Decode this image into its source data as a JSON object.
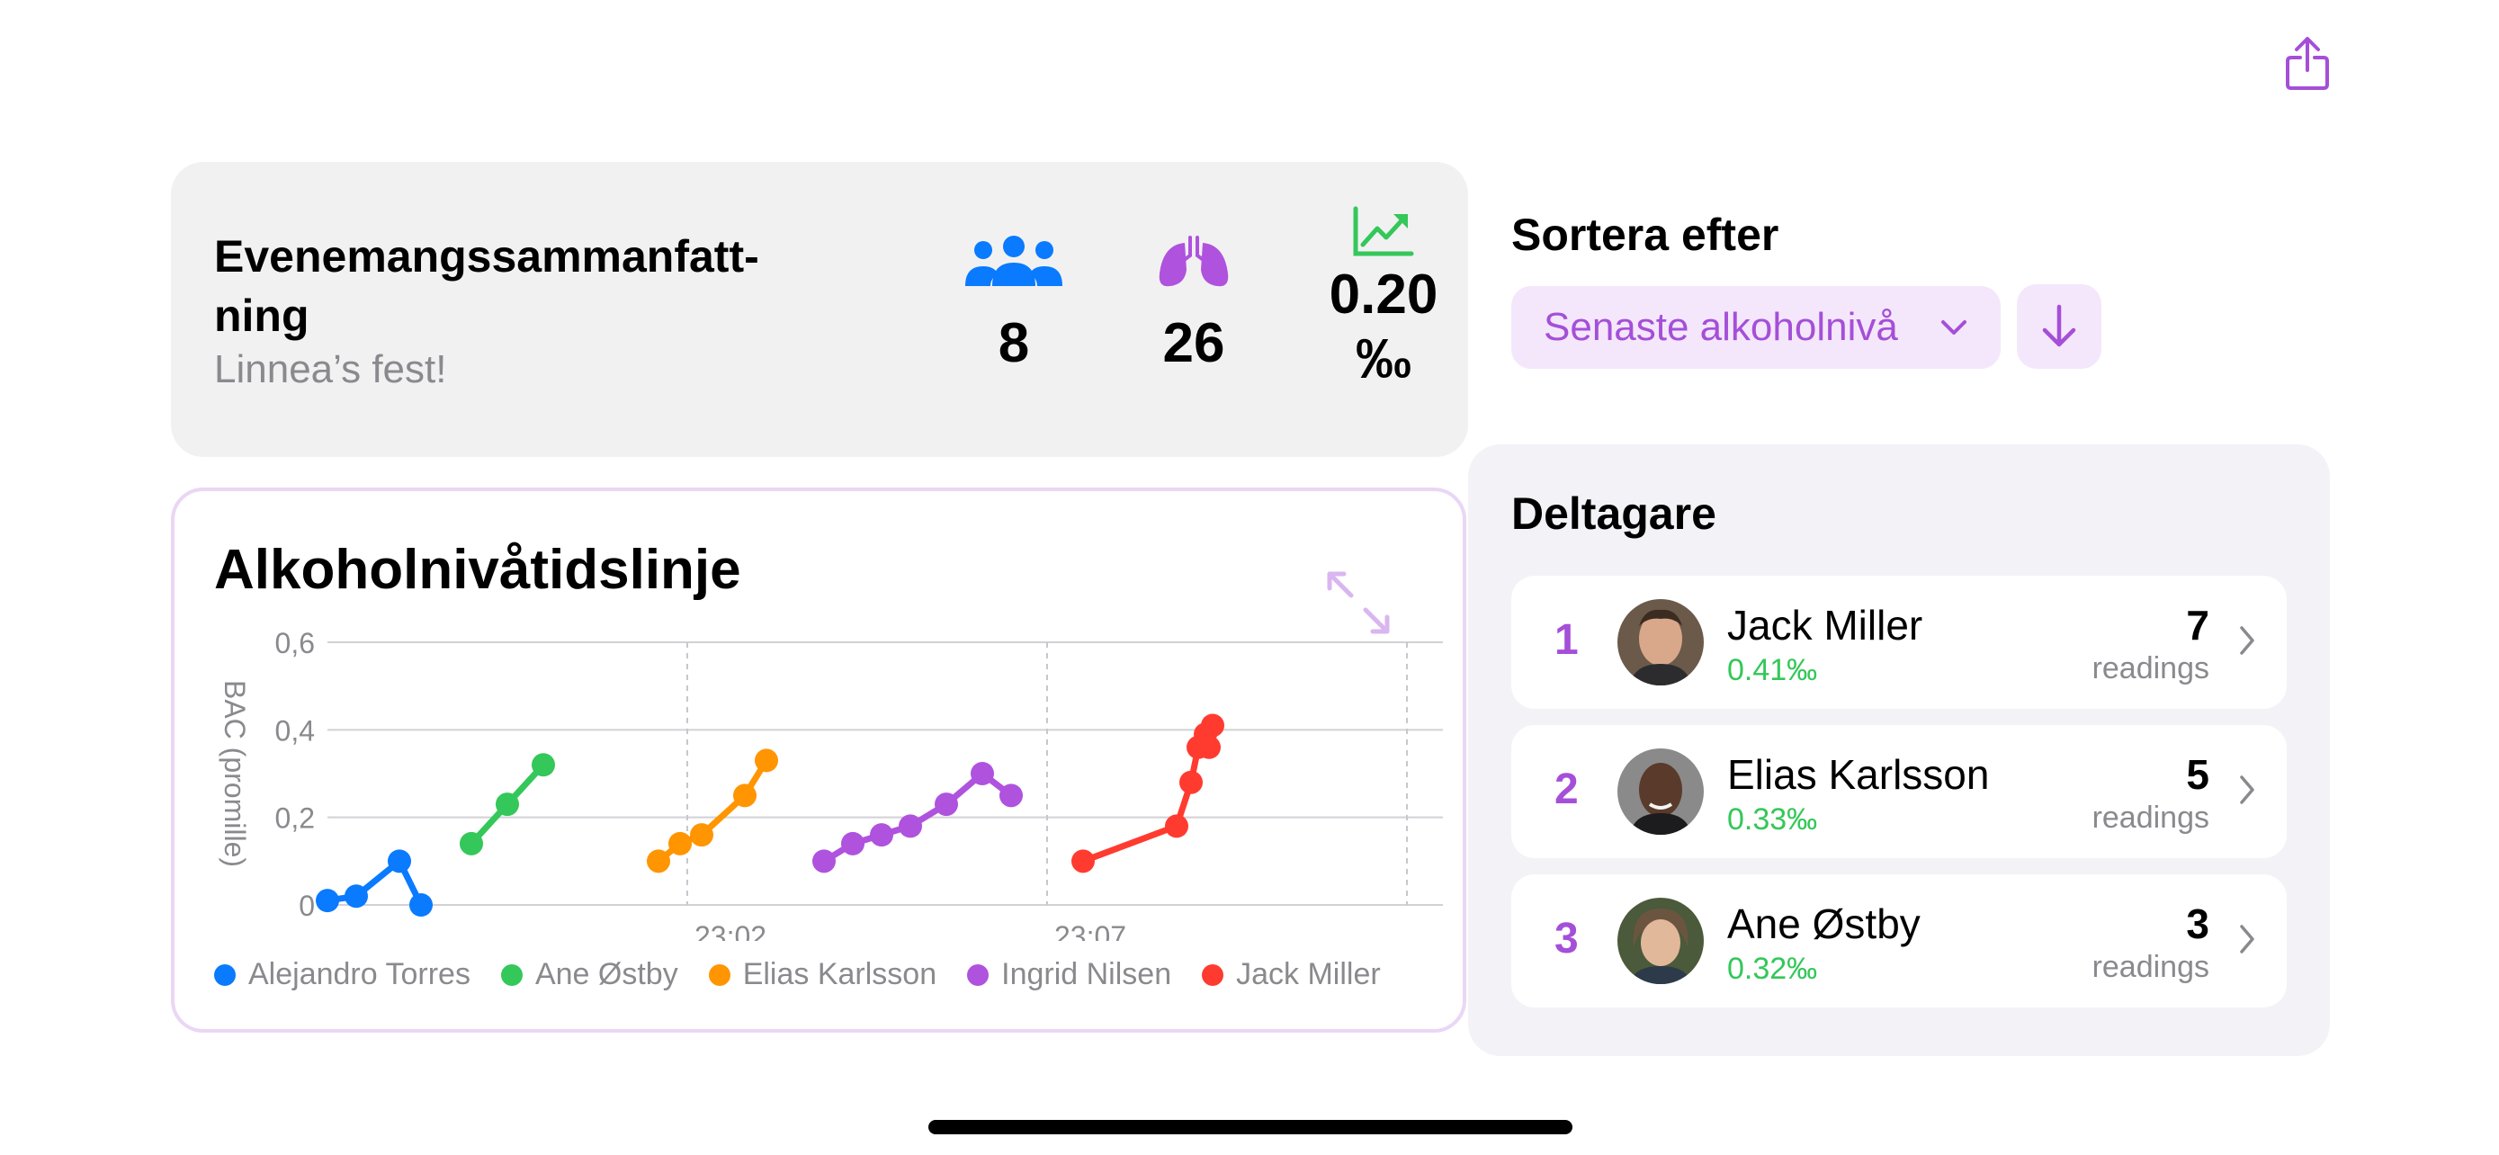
{
  "summary": {
    "title": "Evenemangssammanfatt-ning",
    "subtitle": "Linnea’s fest!",
    "participants_count": "8",
    "tests_count": "26",
    "avg_bac": "0.20 ‰"
  },
  "icons": {
    "share": "share-icon",
    "participants": "people-icon",
    "tests": "lungs-icon",
    "trend": "trend-up-icon",
    "expand": "expand-icon"
  },
  "colors": {
    "accent": "#a54fd8",
    "blue": "#0a7aff",
    "green": "#34c759",
    "orange": "#ff9500",
    "purple": "#af52de",
    "red": "#ff3b30"
  },
  "sort": {
    "title": "Sortera efter",
    "selected": "Senaste alkoholnivå"
  },
  "participants": {
    "title": "Deltagare",
    "items": [
      {
        "rank": "1",
        "name": "Jack Miller",
        "bac": "0.41‰",
        "count": "7",
        "readings_label": "readings"
      },
      {
        "rank": "2",
        "name": "Elias Karlsson",
        "bac": "0.33‰",
        "count": "5",
        "readings_label": "readings"
      },
      {
        "rank": "3",
        "name": "Ane Østby",
        "bac": "0.32‰",
        "count": "3",
        "readings_label": "readings"
      }
    ]
  },
  "chart": {
    "title": "Alkoholnivåtidslinje"
  },
  "chart_data": {
    "type": "line",
    "title": "Alkoholnivåtidslinje",
    "ylabel": "BAC (promille)",
    "ylim": [
      0,
      0.6
    ],
    "y_ticks": [
      "0",
      "0,2",
      "0,4",
      "0,6"
    ],
    "xlim": [
      0,
      12.3
    ],
    "x_ticks": [
      {
        "value": 5,
        "label": "23:02"
      },
      {
        "value": 10,
        "label": "23:07"
      },
      {
        "value": 15,
        "label": "..."
      }
    ],
    "grid": true,
    "legend": "bottom",
    "series": [
      {
        "name": "Alejandro Torres",
        "color": "#0a7aff",
        "x": [
          0.0,
          0.4,
          1.0,
          1.3
        ],
        "y": [
          0.01,
          0.02,
          0.1,
          0.0
        ]
      },
      {
        "name": "Ane Østby",
        "color": "#34c759",
        "x": [
          2.0,
          2.5,
          3.0
        ],
        "y": [
          0.14,
          0.23,
          0.32
        ]
      },
      {
        "name": "Elias Karlsson",
        "color": "#ff9500",
        "x": [
          4.6,
          4.9,
          5.2,
          5.8,
          6.1
        ],
        "y": [
          0.1,
          0.14,
          0.16,
          0.25,
          0.33
        ]
      },
      {
        "name": "Ingrid Nilsen",
        "color": "#af52de",
        "x": [
          6.9,
          7.3,
          7.7,
          8.1,
          8.6,
          9.1,
          9.5
        ],
        "y": [
          0.1,
          0.14,
          0.16,
          0.18,
          0.23,
          0.3,
          0.25
        ]
      },
      {
        "name": "Jack Miller",
        "color": "#ff3b30",
        "x": [
          10.5,
          11.8,
          12.0,
          12.1,
          12.2,
          12.25,
          12.3
        ],
        "y": [
          0.1,
          0.18,
          0.28,
          0.36,
          0.39,
          0.36,
          0.41
        ]
      }
    ]
  }
}
